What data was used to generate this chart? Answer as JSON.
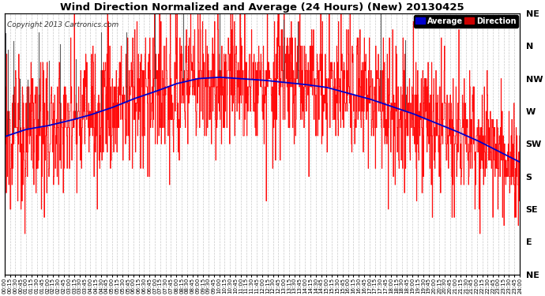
{
  "title": "Wind Direction Normalized and Average (24 Hours) (New) 20130425",
  "copyright": "Copyright 2013 Cartronics.com",
  "background_color": "#ffffff",
  "plot_bg_color": "#ffffff",
  "grid_color": "#bbbbbb",
  "ytick_labels": [
    "NE",
    "N",
    "NW",
    "W",
    "SW",
    "S",
    "SE",
    "E",
    "NE"
  ],
  "ytick_values": [
    0,
    45,
    90,
    135,
    180,
    225,
    270,
    315,
    360
  ],
  "ylim": [
    0,
    360
  ],
  "red_line_color": "#ff0000",
  "blue_line_color": "#0000cc",
  "black_line_color": "#333333",
  "avg_control_t": [
    0,
    30,
    60,
    120,
    180,
    240,
    300,
    360,
    420,
    480,
    540,
    600,
    660,
    720,
    780,
    840,
    900,
    960,
    1020,
    1080,
    1140,
    1200,
    1260,
    1320,
    1380,
    1440
  ],
  "avg_control_v": [
    170,
    165,
    160,
    155,
    148,
    140,
    130,
    118,
    108,
    97,
    90,
    88,
    90,
    92,
    95,
    98,
    102,
    110,
    118,
    128,
    138,
    150,
    162,
    175,
    190,
    205
  ],
  "noise_seed": 123,
  "noise_scale": 45,
  "discrete_step": 11.25,
  "n_points": 1440
}
